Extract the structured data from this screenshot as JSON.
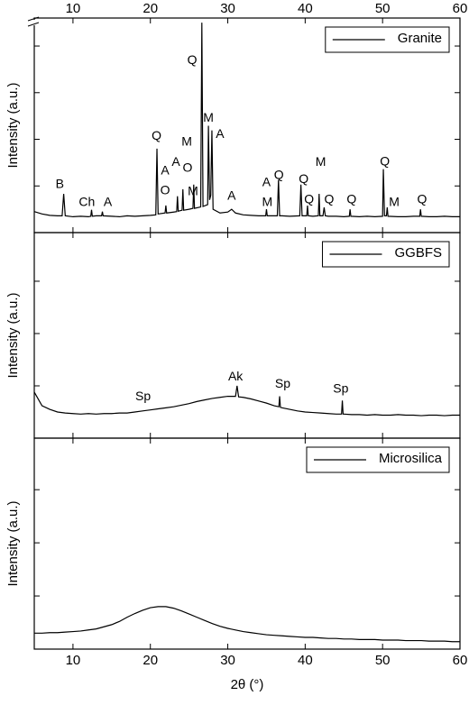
{
  "chart_data": [
    {
      "type": "line",
      "ylabel": "Intensity (a.u.)",
      "xlim": [
        5,
        60
      ],
      "xticks": [
        10,
        20,
        30,
        40,
        50,
        60
      ],
      "xtick_labels": "top",
      "ylim": [
        0,
        4.6
      ],
      "yticks": [
        1,
        2,
        3,
        4
      ],
      "y_break": true,
      "legend": "upper right",
      "series": [
        {
          "name": "Granite",
          "color": "#000000",
          "x": [
            5,
            6,
            7,
            8,
            8.6,
            8.8,
            9,
            10,
            11,
            12,
            12.3,
            12.4,
            12.5,
            13,
            13.7,
            13.8,
            13.9,
            15,
            16,
            17,
            18,
            19,
            20,
            20.7,
            20.85,
            21,
            21.9,
            22,
            22.1,
            23,
            23.4,
            23.5,
            23.6,
            24.1,
            24.2,
            24.3,
            25,
            25.5,
            25.6,
            25.7,
            26.5,
            26.65,
            26.8,
            27.4,
            27.5,
            27.65,
            27.8,
            27.95,
            28.1,
            29,
            30,
            30.5,
            31,
            32,
            33,
            34,
            34.9,
            35,
            35.1,
            36,
            36.4,
            36.55,
            36.7,
            37,
            38,
            39.3,
            39.45,
            39.6,
            40.2,
            40.3,
            40.4,
            41,
            41.7,
            41.8,
            41.9,
            42.3,
            42.45,
            42.6,
            43,
            44,
            45,
            45.7,
            45.8,
            45.9,
            47,
            48,
            49,
            50,
            50.1,
            50.25,
            50.5,
            50.6,
            50.7,
            52,
            53,
            54,
            54.8,
            54.9,
            55,
            56,
            57,
            58,
            59,
            60
          ],
          "values": [
            0.45,
            0.4,
            0.37,
            0.36,
            0.36,
            0.83,
            0.36,
            0.34,
            0.35,
            0.34,
            0.35,
            0.49,
            0.35,
            0.36,
            0.36,
            0.45,
            0.36,
            0.35,
            0.34,
            0.36,
            0.35,
            0.36,
            0.37,
            0.38,
            1.8,
            0.4,
            0.42,
            0.58,
            0.42,
            0.44,
            0.45,
            0.78,
            0.46,
            0.48,
            0.93,
            0.48,
            0.5,
            0.52,
            1.03,
            0.52,
            0.55,
            4.5,
            0.56,
            0.6,
            2.29,
            0.7,
            0.8,
            2.19,
            0.5,
            0.42,
            0.44,
            0.5,
            0.42,
            0.38,
            0.37,
            0.36,
            0.36,
            0.5,
            0.36,
            0.36,
            0.36,
            1.13,
            0.36,
            0.36,
            0.35,
            0.36,
            1.03,
            0.36,
            0.36,
            0.58,
            0.36,
            0.35,
            0.36,
            0.83,
            0.36,
            0.36,
            0.54,
            0.36,
            0.35,
            0.35,
            0.34,
            0.35,
            0.5,
            0.35,
            0.34,
            0.35,
            0.34,
            0.35,
            1.36,
            0.36,
            0.36,
            0.54,
            0.35,
            0.34,
            0.34,
            0.35,
            0.35,
            0.5,
            0.35,
            0.34,
            0.34,
            0.35,
            0.34,
            0.34
          ]
        }
      ],
      "annotations": [
        {
          "text": "B",
          "x": 8.3,
          "y": 1.03
        },
        {
          "text": "Ch",
          "x": 11.8,
          "y": 0.64
        },
        {
          "text": "A",
          "x": 14.5,
          "y": 0.64
        },
        {
          "text": "Q",
          "x": 20.8,
          "y": 2.06
        },
        {
          "text": "A",
          "x": 21.9,
          "y": 1.32
        },
        {
          "text": "A",
          "x": 23.3,
          "y": 1.5
        },
        {
          "text": "O",
          "x": 21.9,
          "y": 0.89
        },
        {
          "text": "O",
          "x": 24.8,
          "y": 1.38
        },
        {
          "text": "M",
          "x": 25.5,
          "y": 0.87
        },
        {
          "text": "M",
          "x": 24.7,
          "y": 1.94
        },
        {
          "text": "Q",
          "x": 25.4,
          "y": 3.69
        },
        {
          "text": "M",
          "x": 27.5,
          "y": 2.45
        },
        {
          "text": "A",
          "x": 29.0,
          "y": 2.1
        },
        {
          "text": "A",
          "x": 30.5,
          "y": 0.78
        },
        {
          "text": "A",
          "x": 35.0,
          "y": 1.07
        },
        {
          "text": "M",
          "x": 35.1,
          "y": 0.64
        },
        {
          "text": "Q",
          "x": 36.6,
          "y": 1.22
        },
        {
          "text": "Q",
          "x": 39.8,
          "y": 1.13
        },
        {
          "text": "Q",
          "x": 40.5,
          "y": 0.7
        },
        {
          "text": "M",
          "x": 42.0,
          "y": 1.5
        },
        {
          "text": "Q",
          "x": 43.1,
          "y": 0.7
        },
        {
          "text": "Q",
          "x": 46.0,
          "y": 0.7
        },
        {
          "text": "Q",
          "x": 50.3,
          "y": 1.51
        },
        {
          "text": "M",
          "x": 51.5,
          "y": 0.64
        },
        {
          "text": "Q",
          "x": 55.1,
          "y": 0.7
        }
      ]
    },
    {
      "type": "line",
      "ylabel": "Intensity (a.u.)",
      "xlim": [
        5,
        60
      ],
      "xticks": [
        10,
        20,
        30,
        40,
        50,
        60
      ],
      "ylim": [
        0,
        3.93
      ],
      "yticks": [
        1,
        2,
        3
      ],
      "legend": "upper right",
      "series": [
        {
          "name": "GGBFS",
          "color": "#000000",
          "x": [
            5,
            6,
            7,
            8,
            9,
            10,
            11,
            12,
            13,
            14,
            15,
            16,
            17,
            18,
            19,
            20,
            21,
            22,
            23,
            24,
            25,
            26,
            27,
            28,
            29,
            30,
            31,
            31.2,
            31.4,
            32,
            33,
            34,
            35,
            36,
            36.6,
            36.7,
            36.8,
            37,
            38,
            39,
            40,
            41,
            42,
            43,
            44,
            44.7,
            44.8,
            44.9,
            45,
            46,
            47,
            48,
            49,
            50,
            51,
            52,
            53,
            54,
            55,
            56,
            57,
            58,
            59,
            60
          ],
          "values": [
            0.88,
            0.62,
            0.55,
            0.5,
            0.48,
            0.47,
            0.46,
            0.47,
            0.46,
            0.47,
            0.47,
            0.48,
            0.48,
            0.5,
            0.52,
            0.54,
            0.56,
            0.58,
            0.6,
            0.63,
            0.66,
            0.7,
            0.73,
            0.76,
            0.78,
            0.8,
            0.8,
            1.0,
            0.79,
            0.78,
            0.75,
            0.71,
            0.67,
            0.62,
            0.6,
            0.8,
            0.59,
            0.58,
            0.55,
            0.52,
            0.5,
            0.49,
            0.48,
            0.47,
            0.46,
            0.46,
            0.72,
            0.46,
            0.46,
            0.45,
            0.45,
            0.44,
            0.45,
            0.44,
            0.44,
            0.45,
            0.44,
            0.44,
            0.43,
            0.44,
            0.44,
            0.43,
            0.44,
            0.44
          ]
        }
      ],
      "annotations": [
        {
          "text": "Sp",
          "x": 19.05,
          "y": 0.79
        },
        {
          "text": "Ak",
          "x": 31.0,
          "y": 1.17
        },
        {
          "text": "Sp",
          "x": 37.1,
          "y": 1.03
        },
        {
          "text": "Sp",
          "x": 44.6,
          "y": 0.93
        }
      ]
    },
    {
      "type": "line",
      "ylabel": "Intensity (a.u.)",
      "xlabel": "2θ (°)",
      "xlim": [
        5,
        60
      ],
      "xticks": [
        10,
        20,
        30,
        40,
        50,
        60
      ],
      "xtick_labels": "bottom",
      "ylim": [
        0,
        3.97
      ],
      "yticks": [
        1,
        2,
        3
      ],
      "legend": "upper right",
      "series": [
        {
          "name": "Microsilica",
          "color": "#000000",
          "x": [
            5,
            6,
            7,
            8,
            9,
            10,
            11,
            12,
            13,
            14,
            15,
            16,
            17,
            18,
            19,
            20,
            21,
            22,
            23,
            24,
            25,
            26,
            27,
            28,
            29,
            30,
            31,
            32,
            33,
            34,
            35,
            36,
            37,
            38,
            39,
            40,
            41,
            42,
            43,
            44,
            45,
            46,
            47,
            48,
            49,
            50,
            51,
            52,
            53,
            54,
            55,
            56,
            57,
            58,
            59,
            60
          ],
          "values": [
            0.3,
            0.3,
            0.31,
            0.31,
            0.32,
            0.33,
            0.34,
            0.36,
            0.38,
            0.42,
            0.46,
            0.52,
            0.6,
            0.67,
            0.73,
            0.78,
            0.8,
            0.8,
            0.77,
            0.72,
            0.66,
            0.6,
            0.54,
            0.48,
            0.43,
            0.39,
            0.36,
            0.33,
            0.31,
            0.29,
            0.27,
            0.26,
            0.25,
            0.24,
            0.23,
            0.22,
            0.22,
            0.21,
            0.2,
            0.2,
            0.19,
            0.19,
            0.18,
            0.18,
            0.18,
            0.17,
            0.17,
            0.17,
            0.16,
            0.16,
            0.16,
            0.15,
            0.15,
            0.15,
            0.14,
            0.14
          ]
        }
      ],
      "annotations": []
    }
  ]
}
